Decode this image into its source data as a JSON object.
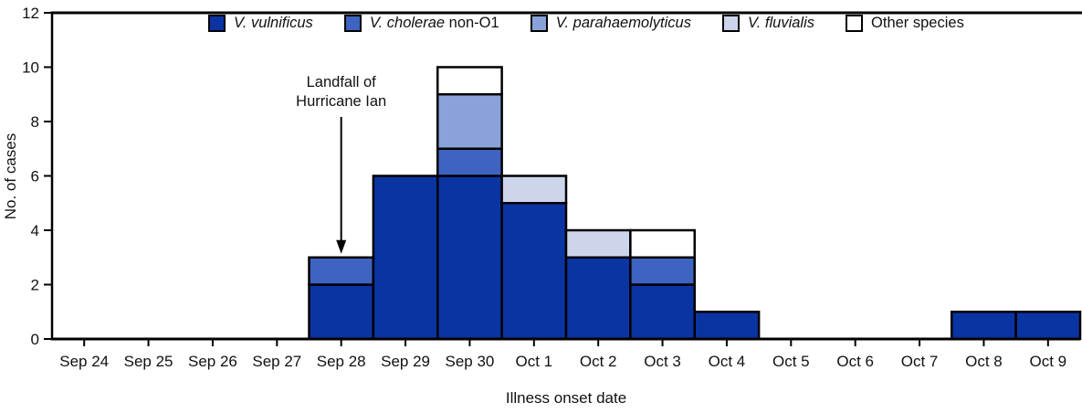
{
  "chart_data": {
    "type": "bar",
    "stacked": true,
    "title": "",
    "xlabel": "Illness onset date",
    "ylabel": "No. of cases",
    "ylim": [
      0,
      12
    ],
    "yticks": [
      0,
      2,
      4,
      6,
      8,
      10,
      12
    ],
    "grid": false,
    "legend_position": "top-center",
    "bar_outline_color": "#000000",
    "categories": [
      "Sep 24",
      "Sep 25",
      "Sep 26",
      "Sep 27",
      "Sep 28",
      "Sep 29",
      "Sep 30",
      "Oct 1",
      "Oct 2",
      "Oct 3",
      "Oct 4",
      "Oct 5",
      "Oct 6",
      "Oct 7",
      "Oct 8",
      "Oct 9"
    ],
    "series": [
      {
        "name": "V. vulnificus",
        "label_italic": "V. vulnificus",
        "label_regular": "",
        "color": "#0b34a3",
        "values": [
          0,
          0,
          0,
          0,
          2,
          6,
          6,
          5,
          3,
          2,
          1,
          0,
          0,
          0,
          1,
          1
        ]
      },
      {
        "name": "V. cholerae non-O1",
        "label_italic": "V. cholerae",
        "label_regular": " non-O1",
        "color": "#3e63c0",
        "values": [
          0,
          0,
          0,
          0,
          1,
          0,
          1,
          0,
          0,
          1,
          0,
          0,
          0,
          0,
          0,
          0
        ]
      },
      {
        "name": "V. parahaemolyticus",
        "label_italic": "V. parahaemolyticus",
        "label_regular": "",
        "color": "#89a3d8",
        "values": [
          0,
          0,
          0,
          0,
          0,
          0,
          2,
          0,
          0,
          0,
          0,
          0,
          0,
          0,
          0,
          0
        ]
      },
      {
        "name": "V. fluvialis",
        "label_italic": "V. fluvialis",
        "label_regular": "",
        "color": "#ccd5ec",
        "values": [
          0,
          0,
          0,
          0,
          0,
          0,
          0,
          1,
          1,
          0,
          0,
          0,
          0,
          0,
          0,
          0
        ]
      },
      {
        "name": "Other species",
        "label_italic": "",
        "label_regular": "Other species",
        "color": "#ffffff",
        "values": [
          0,
          0,
          0,
          0,
          0,
          0,
          1,
          0,
          0,
          1,
          0,
          0,
          0,
          0,
          0,
          0
        ]
      }
    ],
    "annotation": {
      "line1": "Landfall of",
      "line2": "Hurricane Ian",
      "category": "Sep 28",
      "arrow_direction": "down"
    }
  }
}
